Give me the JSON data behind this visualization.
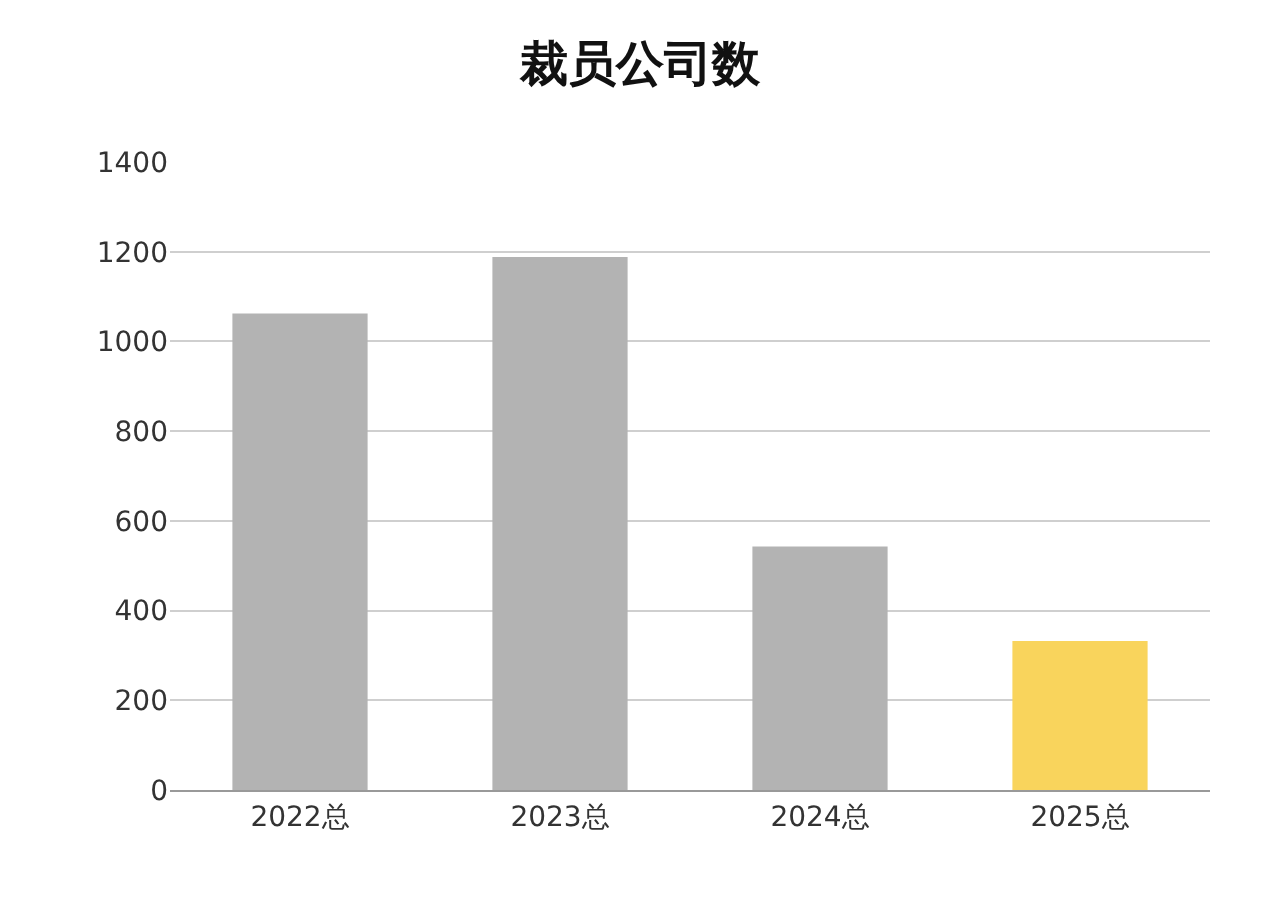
{
  "chart_data": {
    "type": "bar",
    "title": "裁员公司数",
    "categories": [
      "2022总",
      "2023总",
      "2024总",
      "2025总"
    ],
    "values": [
      1062,
      1188,
      543,
      332
    ],
    "colors": [
      "#b3b3b3",
      "#b3b3b3",
      "#b3b3b3",
      "#f9d45c"
    ],
    "ylim": [
      0,
      1400
    ],
    "yticks": [
      0,
      200,
      400,
      600,
      800,
      1000,
      1200,
      1400
    ],
    "grid": "y",
    "legend": false
  }
}
